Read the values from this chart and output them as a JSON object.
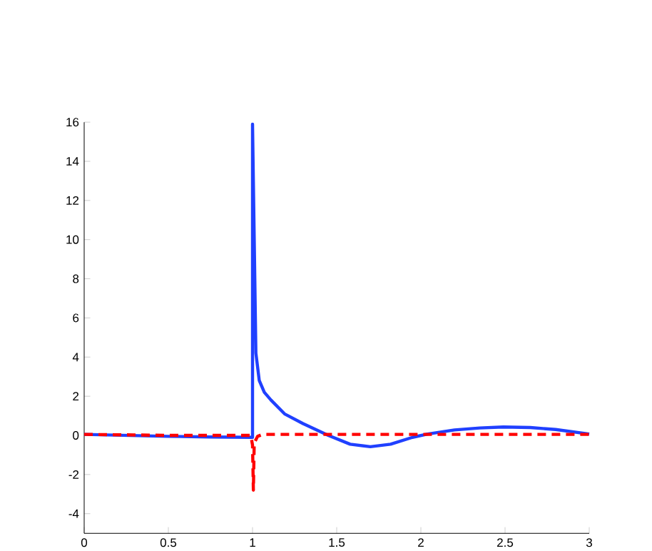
{
  "chart_data": {
    "type": "line",
    "xlim": [
      0,
      3
    ],
    "ylim": [
      -5,
      16
    ],
    "xticks": [
      0,
      0.5,
      1,
      1.5,
      2,
      2.5,
      3
    ],
    "yticks": [
      -4,
      -2,
      0,
      2,
      4,
      6,
      8,
      10,
      12,
      14,
      16
    ],
    "grid": false,
    "series": [
      {
        "color": "#2040ff",
        "line_style": "solid",
        "x": [
          0,
          0.25,
          0.5,
          0.75,
          1.0,
          1.0,
          1.02,
          1.04,
          1.07,
          1.11,
          1.19,
          1.3,
          1.45,
          1.58,
          1.7,
          1.82,
          1.95,
          2.04,
          2.2,
          2.35,
          2.49,
          2.65,
          2.8,
          3.0
        ],
        "values": [
          0.05,
          0,
          -0.05,
          -0.08,
          -0.1,
          15.9,
          4.2,
          2.8,
          2.2,
          1.8,
          1.1,
          0.6,
          0,
          -0.45,
          -0.58,
          -0.45,
          -0.1,
          0.07,
          0.28,
          0.38,
          0.43,
          0.4,
          0.3,
          0.07
        ]
      },
      {
        "color": "#ff0000",
        "line_style": "dashed",
        "x": [
          0,
          0.5,
          0.99,
          1.0,
          1.005,
          1.01,
          1.03,
          1.06,
          1.5,
          2,
          2.5,
          3
        ],
        "values": [
          0.05,
          0,
          0,
          -0.5,
          -2.8,
          -0.4,
          -0.05,
          0.05,
          0.05,
          0.05,
          0.05,
          0.05
        ]
      }
    ]
  }
}
